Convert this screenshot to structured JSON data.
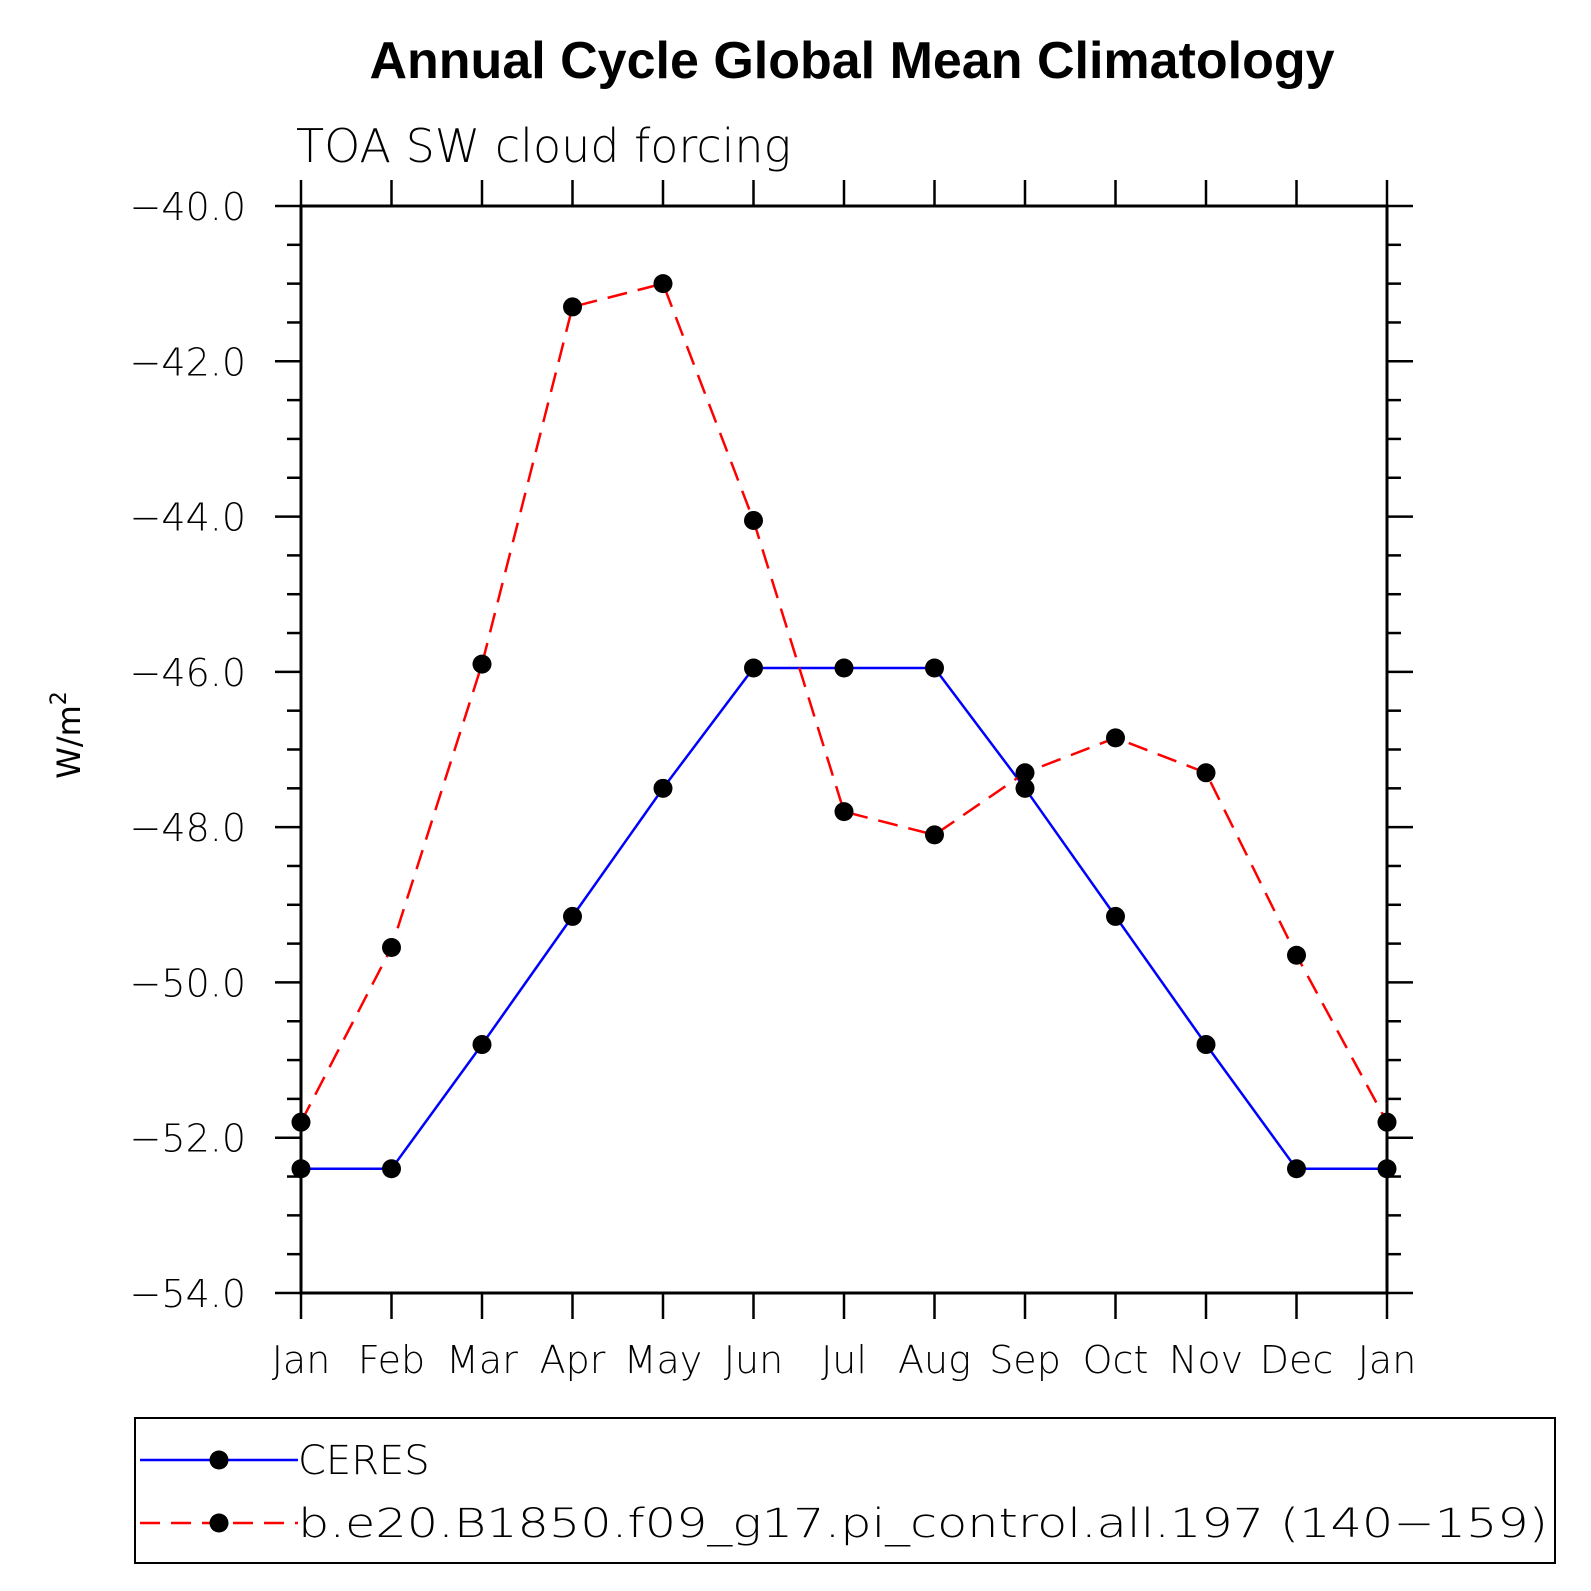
{
  "chart_data": {
    "type": "line",
    "title": "Annual Cycle Global Mean Climatology",
    "subtitle": "TOA SW cloud forcing",
    "ylabel_base": "W/m",
    "ylabel_sup": "2",
    "categories": [
      "Jan",
      "Feb",
      "Mar",
      "Apr",
      "May",
      "Jun",
      "Jul",
      "Aug",
      "Sep",
      "Oct",
      "Nov",
      "Dec",
      "Jan"
    ],
    "ylim": [
      -54,
      -40
    ],
    "yticks": [
      -40,
      -42,
      -44,
      -46,
      -48,
      -50,
      -52,
      -54
    ],
    "ytick_labels": [
      "−40.0",
      "−42.0",
      "−44.0",
      "−46.0",
      "−48.0",
      "−50.0",
      "−52.0",
      "−54.0"
    ],
    "grid": false,
    "legend_position": "bottom",
    "series": [
      {
        "name": "CERES",
        "color": "#0000ff",
        "dash": "solid",
        "values": [
          -52.4,
          -52.4,
          -50.8,
          -49.15,
          -47.5,
          -45.95,
          -45.95,
          -45.95,
          -47.5,
          -49.15,
          -50.8,
          -52.4,
          -52.4
        ]
      },
      {
        "name": "b.e20.B1850.f09_g17.pi_control.all.197 (140−159)",
        "color": "#ff0000",
        "dash": "dashed",
        "values": [
          -51.8,
          -49.55,
          -45.9,
          -41.3,
          -41.0,
          -44.05,
          -47.8,
          -48.1,
          -47.3,
          -46.85,
          -47.3,
          -49.65,
          -51.8
        ]
      }
    ]
  }
}
